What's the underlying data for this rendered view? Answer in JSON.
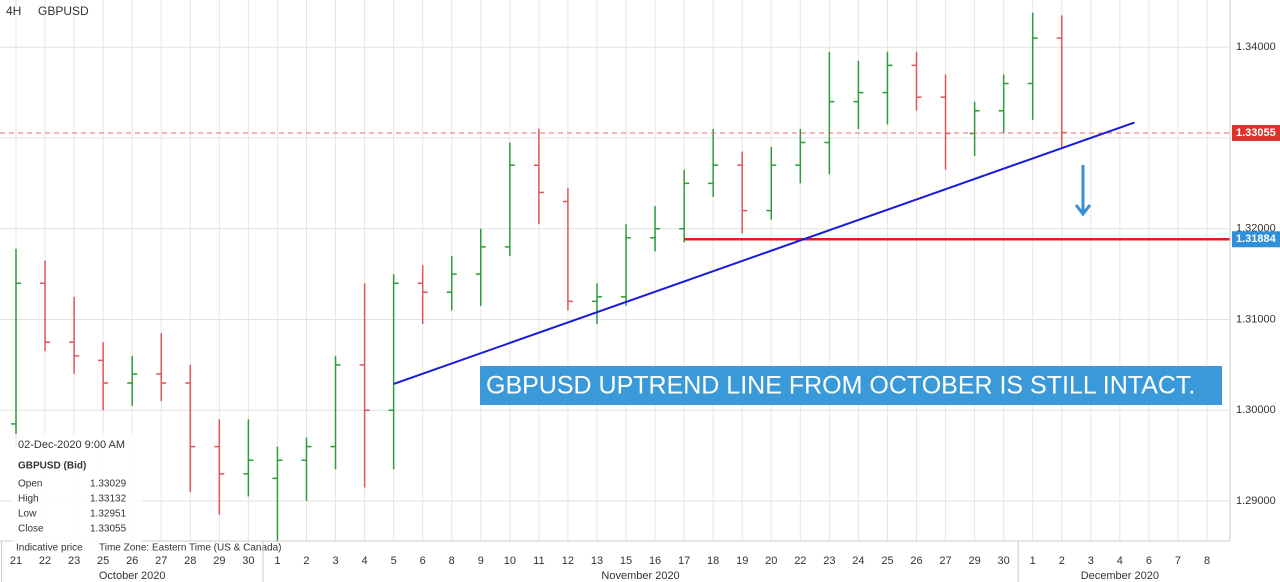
{
  "header": {
    "timeframe": "4H",
    "symbol": "GBPUSD"
  },
  "chart_data": {
    "type": "ohlc",
    "categories": [
      "21",
      "22",
      "23",
      "25",
      "26",
      "27",
      "28",
      "29",
      "30",
      "1",
      "2",
      "3",
      "4",
      "5",
      "6",
      "8",
      "9",
      "10",
      "11",
      "12",
      "13",
      "15",
      "16",
      "17",
      "18",
      "19",
      "20",
      "22",
      "23",
      "24",
      "25",
      "26",
      "27",
      "29",
      "30",
      "1",
      "2",
      "3",
      "4",
      "6",
      "7",
      "8"
    ],
    "months": [
      {
        "name": "October 2020",
        "from": 0,
        "to": 8
      },
      {
        "name": "November 2020",
        "from": 9,
        "to": 34
      },
      {
        "name": "December 2020",
        "from": 35,
        "to": 41
      }
    ],
    "open": [
      1.2985,
      1.314,
      1.3075,
      1.3055,
      1.303,
      1.304,
      1.303,
      1.296,
      1.293,
      1.2925,
      1.2945,
      1.296,
      1.305,
      1.3,
      1.314,
      1.313,
      1.315,
      1.318,
      1.327,
      1.323,
      1.312,
      1.3125,
      1.319,
      1.32,
      1.325,
      1.327,
      1.322,
      1.327,
      1.3295,
      1.334,
      1.335,
      1.338,
      1.3345,
      1.3305,
      1.333,
      1.336,
      1.341,
      null,
      null,
      null,
      null,
      null
    ],
    "high": [
      1.3178,
      1.3165,
      1.3125,
      1.3075,
      1.306,
      1.3085,
      1.305,
      1.299,
      1.299,
      1.296,
      1.297,
      1.306,
      1.314,
      1.315,
      1.316,
      1.317,
      1.32,
      1.3295,
      1.331,
      1.3245,
      1.314,
      1.3205,
      1.3225,
      1.3265,
      1.331,
      1.3285,
      1.329,
      1.331,
      1.3395,
      1.3385,
      1.3395,
      1.3395,
      1.337,
      1.334,
      1.337,
      1.3438,
      1.3435,
      null,
      null,
      null,
      null,
      null
    ],
    "low": [
      1.296,
      1.3065,
      1.304,
      1.3,
      1.3005,
      1.301,
      1.291,
      1.2885,
      1.2905,
      1.2855,
      1.29,
      1.2935,
      1.2915,
      1.2935,
      1.3095,
      1.311,
      1.3115,
      1.317,
      1.3205,
      1.311,
      1.3095,
      1.3115,
      1.3175,
      1.3185,
      1.3235,
      1.3195,
      1.321,
      1.325,
      1.326,
      1.331,
      1.3315,
      1.333,
      1.3265,
      1.328,
      1.3305,
      1.332,
      1.329,
      null,
      null,
      null,
      null,
      null
    ],
    "close": [
      1.314,
      1.3075,
      1.306,
      1.303,
      1.304,
      1.303,
      1.296,
      1.293,
      1.2945,
      1.2945,
      1.296,
      1.305,
      1.3,
      1.314,
      1.313,
      1.315,
      1.318,
      1.327,
      1.324,
      1.312,
      1.3125,
      1.319,
      1.32,
      1.325,
      1.327,
      1.322,
      1.327,
      1.3295,
      1.334,
      1.335,
      1.338,
      1.3345,
      1.3305,
      1.333,
      1.336,
      1.341,
      1.3306,
      null,
      null,
      null,
      null,
      null
    ],
    "up_color": "#2e9a3a",
    "down_color": "#e05555",
    "ylim": [
      1.2856,
      1.3452
    ],
    "yticks": [
      {
        "value": 1.29,
        "label": "1.29000"
      },
      {
        "value": 1.3,
        "label": "1.30000"
      },
      {
        "value": 1.31,
        "label": "1.31000"
      },
      {
        "value": 1.32,
        "label": "1.32000"
      },
      {
        "value": 1.33,
        "label": "1.33000"
      },
      {
        "value": 1.34,
        "label": "1.34000"
      }
    ],
    "grid": true,
    "last_price": {
      "value": 1.33055,
      "color": "#e86b6b"
    },
    "support": {
      "value": 1.31884,
      "from": 23,
      "color": "#e01c24"
    },
    "trend_line": {
      "x": [
        13,
        38.5
      ],
      "y": [
        1.3029,
        1.3317
      ],
      "color": "#1a1adb"
    },
    "annotation": "GBPUSD UPTREND LINE FROM OCTOBER IS STILL INTACT."
  },
  "info": {
    "datetime": "02-Dec-2020 9:00 AM",
    "symbol": "GBPUSD (Bid)",
    "rows": [
      [
        "Open",
        1.33029
      ],
      [
        "High",
        1.33132
      ],
      [
        "Low",
        1.32951
      ],
      [
        "Close",
        1.33055
      ]
    ],
    "note": "Indicative price",
    "timezone": "Time Zone: Eastern Time (US & Canada)"
  }
}
